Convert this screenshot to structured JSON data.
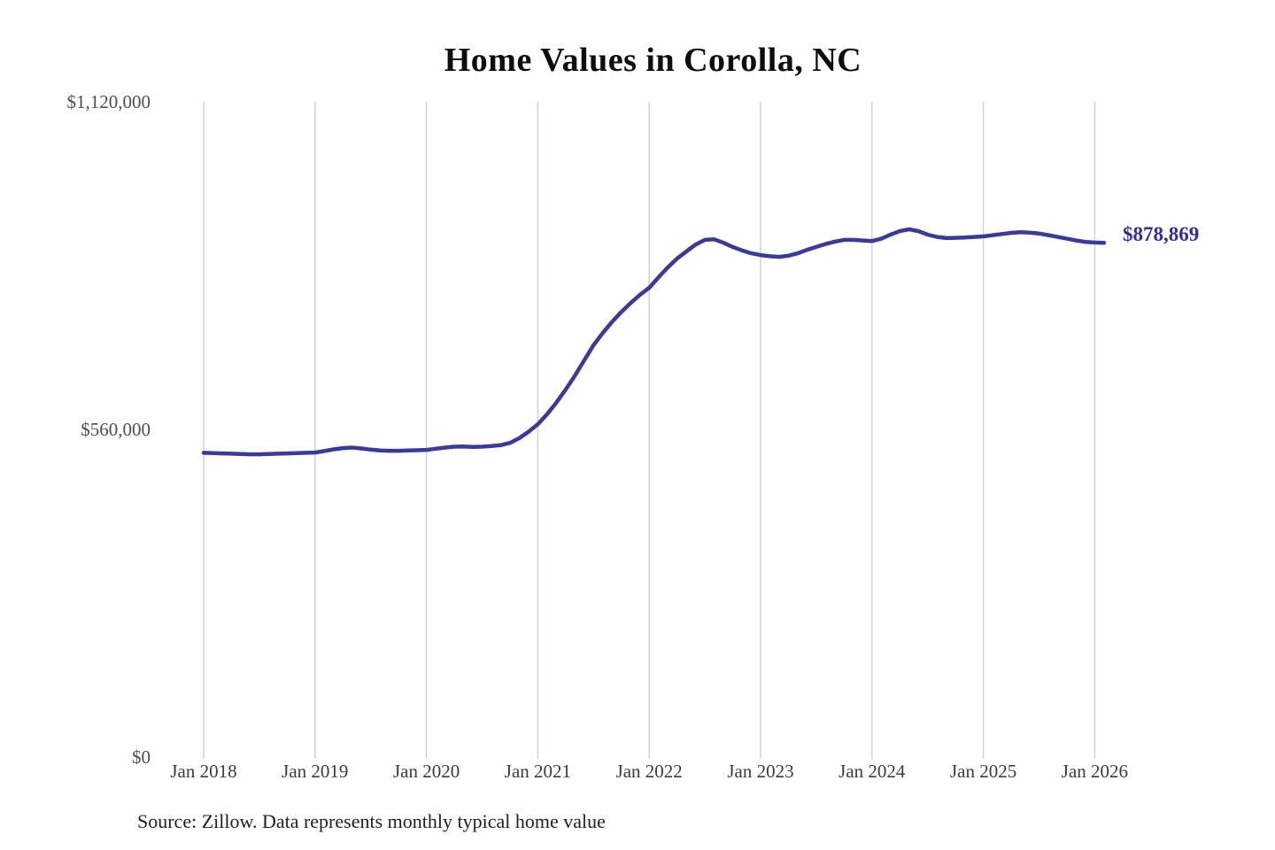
{
  "title": "Home Values in Corolla, NC",
  "source_note": "Source: Zillow. Data represents monthly typical home value",
  "chart_data": {
    "type": "line",
    "title": "Home Values in Corolla, NC",
    "series_name": "Monthly typical home value (Zillow)",
    "frequency": "monthly",
    "start_month": "2018-01",
    "end_month": "2026-02",
    "x_labels": [
      "Jan 2018",
      "Jan 2019",
      "Jan 2020",
      "Jan 2021",
      "Jan 2022",
      "Jan 2023",
      "Jan 2024",
      "Jan 2025",
      "Jan 2026"
    ],
    "yticks": [
      0,
      560000,
      1120000
    ],
    "ytick_labels": [
      "$0",
      "$560,000",
      "$1,120,000"
    ],
    "ylim": [
      0,
      1120000
    ],
    "grid": "vertical-only",
    "legend": "none",
    "line_color": "#3B399B",
    "grid_color": "#d2d2d2",
    "latest_value": 878869,
    "end_label": "$878,869",
    "values": [
      520000,
      519500,
      519000,
      518500,
      518000,
      517500,
      517500,
      518000,
      518500,
      519000,
      519500,
      520000,
      520500,
      523000,
      526000,
      528000,
      529000,
      527500,
      525500,
      524000,
      523500,
      523500,
      524000,
      524500,
      525000,
      527000,
      529000,
      530500,
      531000,
      530000,
      530500,
      531500,
      533000,
      537000,
      545000,
      556000,
      569000,
      586000,
      606000,
      628000,
      652000,
      678000,
      704000,
      725000,
      744000,
      761000,
      776000,
      790000,
      802000,
      820000,
      837000,
      852000,
      864000,
      876000,
      884000,
      885000,
      879000,
      872000,
      866000,
      861000,
      858000,
      856000,
      855000,
      857000,
      861000,
      867000,
      872000,
      877000,
      881000,
      884000,
      884000,
      883000,
      882000,
      886000,
      893000,
      899000,
      902000,
      899000,
      893000,
      889000,
      887000,
      887500,
      888000,
      889000,
      890000,
      892000,
      894000,
      896000,
      897000,
      896500,
      895000,
      892000,
      889000,
      886000,
      883000,
      880500,
      879500,
      878869
    ]
  }
}
